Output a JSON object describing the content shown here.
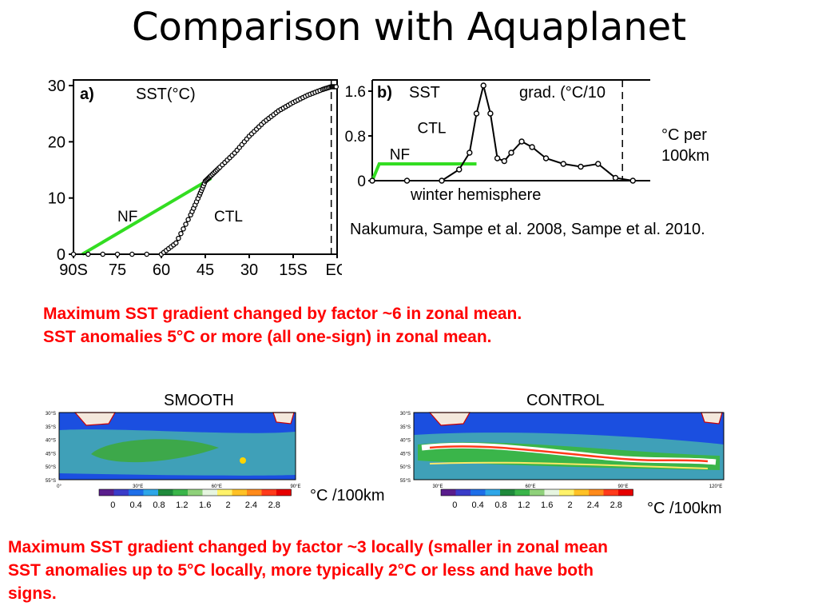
{
  "slide": {
    "title": "Comparison with Aquaplanet",
    "citation": "Nakumura, Sampe et al. 2008, Sampe et al. 2010.",
    "unit_note_top": [
      "°C per",
      "100km"
    ],
    "finding_zonal": [
      "Maximum SST gradient changed by factor ~6 in zonal mean.",
      "SST anomalies 5°C or more (all one-sign) in zonal mean."
    ],
    "finding_local": [
      "Maximum SST gradient changed by factor ~3 locally (smaller in zonal mean",
      "SST anomalies up to 5°C locally, more typically 2°C or less and have both",
      "signs."
    ],
    "colors": {
      "accent_red": "#ff0000",
      "nf_green": "#33dd22"
    }
  },
  "chart_data": [
    {
      "type": "line",
      "panel": "a)",
      "title": "SST(°C)",
      "x_ticks": [
        "90S",
        "75",
        "60",
        "45",
        "30",
        "15S",
        "EQ"
      ],
      "y_ticks": [
        "0",
        "10",
        "20",
        "30"
      ],
      "xlim": [
        -90,
        0
      ],
      "ylim": [
        0,
        31
      ],
      "series": [
        {
          "name": "CTL",
          "x": [
            -90,
            -60,
            -55,
            -50,
            -47,
            -45,
            -43,
            -40,
            -35,
            -30,
            -25,
            -20,
            -15,
            -10,
            -5,
            -2,
            0
          ],
          "y": [
            0,
            0,
            2,
            7,
            10.5,
            13,
            14,
            15.5,
            18,
            21,
            23.5,
            25.5,
            27,
            28.3,
            29.3,
            29.8,
            29.8
          ]
        },
        {
          "name": "NF",
          "x": [
            -87,
            -43
          ],
          "y": [
            0,
            13.5
          ]
        }
      ]
    },
    {
      "type": "line",
      "panel": "b)",
      "title": "SST grad. (°C/10",
      "x_label": "winter hemisphere",
      "y_ticks": [
        "0",
        "0.8",
        "1.6"
      ],
      "ylim": [
        0,
        1.8
      ],
      "series": [
        {
          "name": "CTL",
          "x": [
            0,
            10,
            20,
            25,
            28,
            30,
            32,
            34,
            36,
            38,
            40,
            43,
            46,
            50,
            55,
            60,
            65,
            70,
            75
          ],
          "y": [
            0,
            0,
            0,
            0.2,
            0.5,
            1.2,
            1.7,
            1.2,
            0.4,
            0.35,
            0.5,
            0.7,
            0.6,
            0.4,
            0.3,
            0.25,
            0.3,
            0.05,
            0
          ]
        },
        {
          "name": "NF",
          "x": [
            0,
            2,
            10,
            20,
            30
          ],
          "y": [
            0,
            0.3,
            0.3,
            0.3,
            0.3
          ]
        }
      ]
    },
    {
      "type": "heatmap",
      "title": "SMOOTH",
      "unit": "°C /100km",
      "lat_ticks": [
        "30°S",
        "35°S",
        "40°S",
        "45°S",
        "50°S",
        "55°S"
      ],
      "lon_ticks": [
        "0°",
        "30°E",
        "60°E",
        "90°E"
      ],
      "colorbar": [
        "0",
        "0.4",
        "0.8",
        "1.2",
        "1.6",
        "2",
        "2.4",
        "2.8"
      ]
    },
    {
      "type": "heatmap",
      "title": "CONTROL",
      "unit": "°C /100km",
      "lat_ticks": [
        "30°S",
        "35°S",
        "40°S",
        "45°S",
        "50°S",
        "55°S"
      ],
      "lon_ticks": [
        "30°E",
        "60°E",
        "90°E",
        "120°E"
      ],
      "colorbar": [
        "0",
        "0.4",
        "0.8",
        "1.2",
        "1.6",
        "2",
        "2.4",
        "2.8"
      ]
    }
  ]
}
